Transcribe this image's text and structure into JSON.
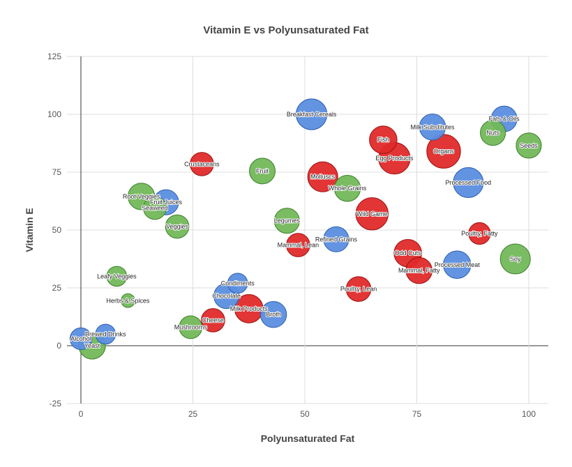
{
  "chart_data": {
    "type": "scatter",
    "variant": "bubble",
    "title": "Vitamin E vs Polyunsaturated Fat",
    "xlabel": "Polyunsaturated Fat",
    "ylabel": "Vitamin E",
    "xlim": [
      0,
      100
    ],
    "ylim": [
      -25,
      125
    ],
    "xticks": [
      "0",
      "25",
      "50",
      "75",
      "100"
    ],
    "yticks": [
      "-25",
      "0",
      "25",
      "50",
      "75",
      "100",
      "125"
    ],
    "grid": true,
    "legend": "none",
    "colors": {
      "blue": "#5b8ee0",
      "red": "#e02a2a",
      "green": "#72b85a"
    },
    "points": [
      {
        "label": "Breakfast Cereals",
        "x": 51.5,
        "y": 100,
        "size": 1.0,
        "color": "blue"
      },
      {
        "label": "Milk Substitutes",
        "x": 78.5,
        "y": 94.5,
        "size": 0.72,
        "color": "blue"
      },
      {
        "label": "Fats & Oils",
        "x": 94.5,
        "y": 98,
        "size": 0.7,
        "color": "blue"
      },
      {
        "label": "Nuts",
        "x": 92,
        "y": 92,
        "size": 0.67,
        "color": "green"
      },
      {
        "label": "Seeds",
        "x": 100,
        "y": 86.5,
        "size": 0.67,
        "color": "green"
      },
      {
        "label": "Fish",
        "x": 67.5,
        "y": 89,
        "size": 0.8,
        "color": "red"
      },
      {
        "label": "Egg Products",
        "x": 70,
        "y": 81,
        "size": 1.05,
        "color": "red"
      },
      {
        "label": "Organs",
        "x": 81,
        "y": 84,
        "size": 1.2,
        "color": "red"
      },
      {
        "label": "Crustaceans",
        "x": 27,
        "y": 78.5,
        "size": 0.58,
        "color": "red"
      },
      {
        "label": "Fruit",
        "x": 40.5,
        "y": 75.5,
        "size": 0.7,
        "color": "green"
      },
      {
        "label": "Molluscs",
        "x": 54,
        "y": 73,
        "size": 0.95,
        "color": "red"
      },
      {
        "label": "Whole Grains",
        "x": 59.5,
        "y": 68,
        "size": 0.72,
        "color": "green"
      },
      {
        "label": "Processed Food",
        "x": 86.5,
        "y": 70.5,
        "size": 0.95,
        "color": "blue"
      },
      {
        "label": "Root Veggies",
        "x": 13.5,
        "y": 64.5,
        "size": 0.75,
        "color": "green"
      },
      {
        "label": "Fruit Juices",
        "x": 19,
        "y": 62,
        "size": 0.67,
        "color": "blue"
      },
      {
        "label": "Seaweed",
        "x": 16.5,
        "y": 59.5,
        "size": 0.55,
        "color": "green"
      },
      {
        "label": "Wild Game",
        "x": 65,
        "y": 57,
        "size": 1.1,
        "color": "red"
      },
      {
        "label": "Legumes",
        "x": 46,
        "y": 54,
        "size": 0.67,
        "color": "green"
      },
      {
        "label": "Veggies",
        "x": 21.5,
        "y": 51.5,
        "size": 0.58,
        "color": "green"
      },
      {
        "label": "Poultry, Fatty",
        "x": 89,
        "y": 48.5,
        "size": 0.5,
        "color": "red"
      },
      {
        "label": "Refined Grains",
        "x": 57,
        "y": 46,
        "size": 0.67,
        "color": "blue"
      },
      {
        "label": "Mammal, Lean",
        "x": 48.5,
        "y": 43.5,
        "size": 0.58,
        "color": "red"
      },
      {
        "label": "Odd Cuts",
        "x": 73,
        "y": 40,
        "size": 0.8,
        "color": "red"
      },
      {
        "label": "Soy",
        "x": 97,
        "y": 37.5,
        "size": 0.95,
        "color": "green"
      },
      {
        "label": "Processed Meat",
        "x": 84,
        "y": 35,
        "size": 0.8,
        "color": "blue"
      },
      {
        "label": "Mammal, Fatty",
        "x": 75.5,
        "y": 32.5,
        "size": 0.72,
        "color": "red"
      },
      {
        "label": "Leafy Veggies",
        "x": 8,
        "y": 30,
        "size": 0.42,
        "color": "green"
      },
      {
        "label": "Condiments",
        "x": 35,
        "y": 27,
        "size": 0.42,
        "color": "blue"
      },
      {
        "label": "Poultry, Lean",
        "x": 62,
        "y": 24.5,
        "size": 0.65,
        "color": "red"
      },
      {
        "label": "Chocolate",
        "x": 32.5,
        "y": 21.5,
        "size": 0.67,
        "color": "blue"
      },
      {
        "label": "Herbs & Spices",
        "x": 10.5,
        "y": 19.5,
        "size": 0.2,
        "color": "green"
      },
      {
        "label": "Milk Products",
        "x": 37.5,
        "y": 16,
        "size": 0.85,
        "color": "red"
      },
      {
        "label": "Broth",
        "x": 43,
        "y": 13.5,
        "size": 0.72,
        "color": "blue"
      },
      {
        "label": "Cheese",
        "x": 29.5,
        "y": 11,
        "size": 0.58,
        "color": "red"
      },
      {
        "label": "Mushrooms",
        "x": 24.5,
        "y": 8,
        "size": 0.55,
        "color": "green"
      },
      {
        "label": "Brewed Drinks",
        "x": 5.5,
        "y": 5,
        "size": 0.42,
        "color": "blue"
      },
      {
        "label": "Alcohol",
        "x": 0,
        "y": 3,
        "size": 0.5,
        "color": "blue"
      },
      {
        "label": "Yeast",
        "x": 2.5,
        "y": 0,
        "size": 0.75,
        "color": "green"
      }
    ]
  }
}
